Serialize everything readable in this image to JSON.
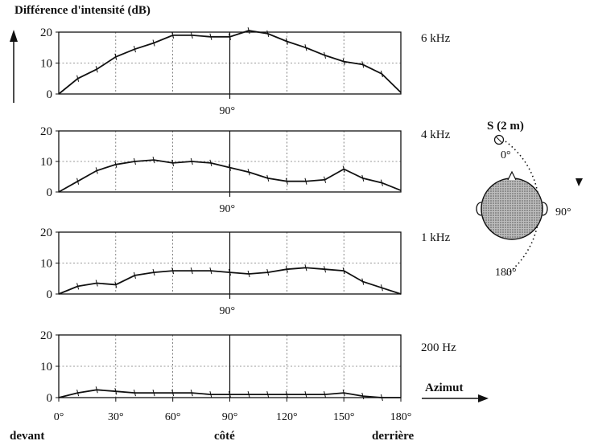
{
  "ylabel": "Différence d'intensité (dB)",
  "xlabel": "Azimut",
  "direction_labels": {
    "front": "devant",
    "side": "côté",
    "back": "derrière"
  },
  "mid_label": "90°",
  "diagram": {
    "source": "S (2 m)",
    "angle_0": "0°",
    "angle_90": "90°",
    "angle_180": "180°"
  },
  "chart_data": [
    {
      "type": "line",
      "title": "6 kHz",
      "x": [
        0,
        10,
        20,
        30,
        40,
        50,
        60,
        70,
        80,
        90,
        100,
        110,
        120,
        130,
        140,
        150,
        160,
        170,
        180
      ],
      "values": [
        0,
        5,
        8,
        12,
        14.5,
        16.5,
        19,
        19,
        18.5,
        18.5,
        20.5,
        19.5,
        17,
        15,
        12.5,
        10.5,
        9.5,
        6.5,
        0.5
      ],
      "xlim": [
        0,
        180
      ],
      "ylim": [
        0,
        20
      ],
      "yticks": [
        0,
        10,
        20
      ]
    },
    {
      "type": "line",
      "title": "4 kHz",
      "x": [
        0,
        10,
        20,
        30,
        40,
        50,
        60,
        70,
        80,
        90,
        100,
        110,
        120,
        130,
        140,
        150,
        160,
        170,
        180
      ],
      "values": [
        0,
        3.5,
        7,
        9,
        10,
        10.5,
        9.5,
        10,
        9.5,
        8,
        6.5,
        4.5,
        3.5,
        3.5,
        4,
        7.5,
        4.5,
        3,
        0.5
      ],
      "xlim": [
        0,
        180
      ],
      "ylim": [
        0,
        20
      ],
      "yticks": [
        0,
        10,
        20
      ]
    },
    {
      "type": "line",
      "title": "1 kHz",
      "x": [
        0,
        10,
        20,
        30,
        40,
        50,
        60,
        70,
        80,
        90,
        100,
        110,
        120,
        130,
        140,
        150,
        160,
        170,
        180
      ],
      "values": [
        0,
        2.5,
        3.5,
        3,
        6,
        7,
        7.5,
        7.5,
        7.5,
        7,
        6.5,
        7,
        8,
        8.5,
        8,
        7.5,
        4,
        2,
        0
      ],
      "xlim": [
        0,
        180
      ],
      "ylim": [
        0,
        20
      ],
      "yticks": [
        0,
        10,
        20
      ]
    },
    {
      "type": "line",
      "title": "200 Hz",
      "x": [
        0,
        10,
        20,
        30,
        40,
        50,
        60,
        70,
        80,
        90,
        100,
        110,
        120,
        130,
        140,
        150,
        160,
        170,
        180
      ],
      "values": [
        0,
        1.5,
        2.5,
        2,
        1.5,
        1.5,
        1.5,
        1.5,
        1,
        1,
        1,
        1,
        1,
        1,
        1,
        1.5,
        0.5,
        0,
        0
      ],
      "xlim": [
        0,
        180
      ],
      "ylim": [
        0,
        20
      ],
      "yticks": [
        0,
        10,
        20
      ],
      "xticks": [
        "0°",
        "30°",
        "60°",
        "90°",
        "120°",
        "150°",
        "180°"
      ]
    }
  ]
}
